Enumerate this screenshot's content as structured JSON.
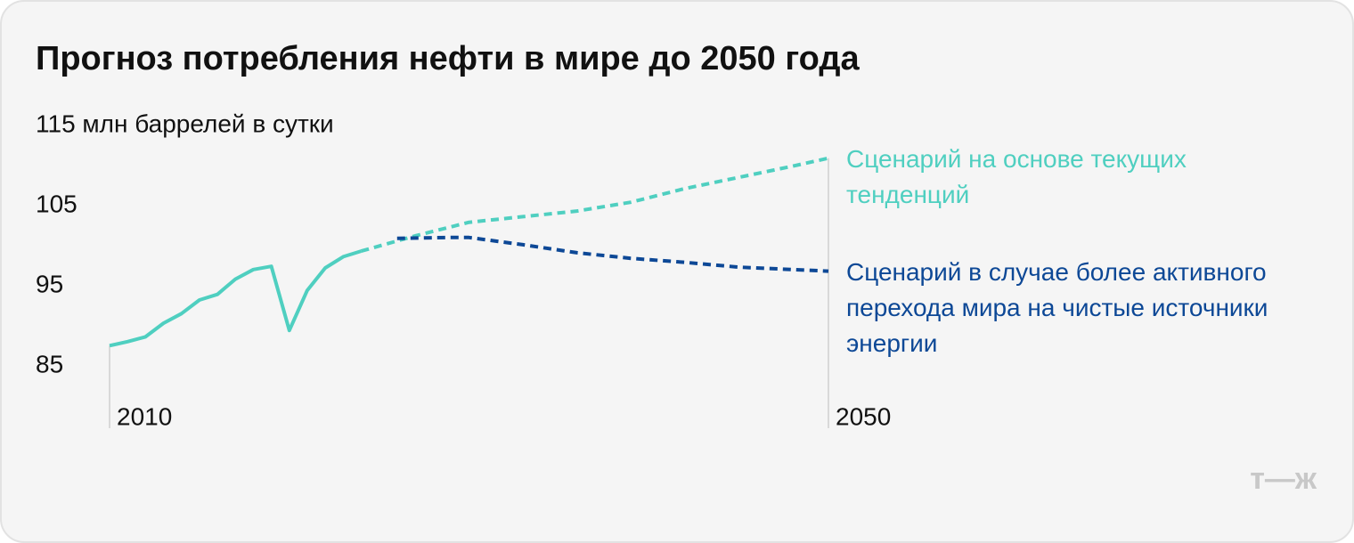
{
  "chart_data": {
    "type": "line",
    "title": "Прогноз потребления нефти в мире до 2050 года",
    "ylim": [
      77,
      115
    ],
    "yticks": [
      85,
      95,
      105,
      {
        "value": 115,
        "label": "115 млн баррелей в сутки"
      }
    ],
    "xlim": [
      2010,
      2050
    ],
    "xticks": [
      2010,
      2050
    ],
    "series": [
      {
        "color": "#4fcfc0",
        "dashed": false,
        "x": [
          2010,
          2011,
          2012,
          2013,
          2014,
          2015,
          2016,
          2017,
          2018,
          2019,
          2020,
          2021,
          2022,
          2023,
          2024
        ],
        "values": [
          87.3,
          87.8,
          88.4,
          90.1,
          91.3,
          93.0,
          93.7,
          95.6,
          96.8,
          97.2,
          89.2,
          94.2,
          97.0,
          98.4,
          99.1
        ]
      },
      {
        "name": [
          "Сценарий на основе текущих",
          "тенденций"
        ],
        "color": "#4fcfc0",
        "dashed": true,
        "x": [
          2024,
          2027,
          2030,
          2033,
          2036,
          2039,
          2042,
          2045,
          2048,
          2050
        ],
        "values": [
          99.1,
          101.0,
          102.7,
          103.4,
          104.1,
          105.2,
          106.9,
          108.3,
          109.7,
          110.7
        ]
      },
      {
        "name": [
          "Сценарий в случае более активного",
          "перехода мира на чистые источники",
          "энергии"
        ],
        "color": "#0d4896",
        "dashed": true,
        "x": [
          2026,
          2029,
          2030,
          2033,
          2036,
          2039,
          2042,
          2045,
          2048,
          2050
        ],
        "values": [
          100.7,
          100.8,
          100.8,
          99.9,
          98.9,
          98.2,
          97.7,
          97.1,
          96.8,
          96.6
        ]
      }
    ]
  },
  "brand": "т—ж"
}
